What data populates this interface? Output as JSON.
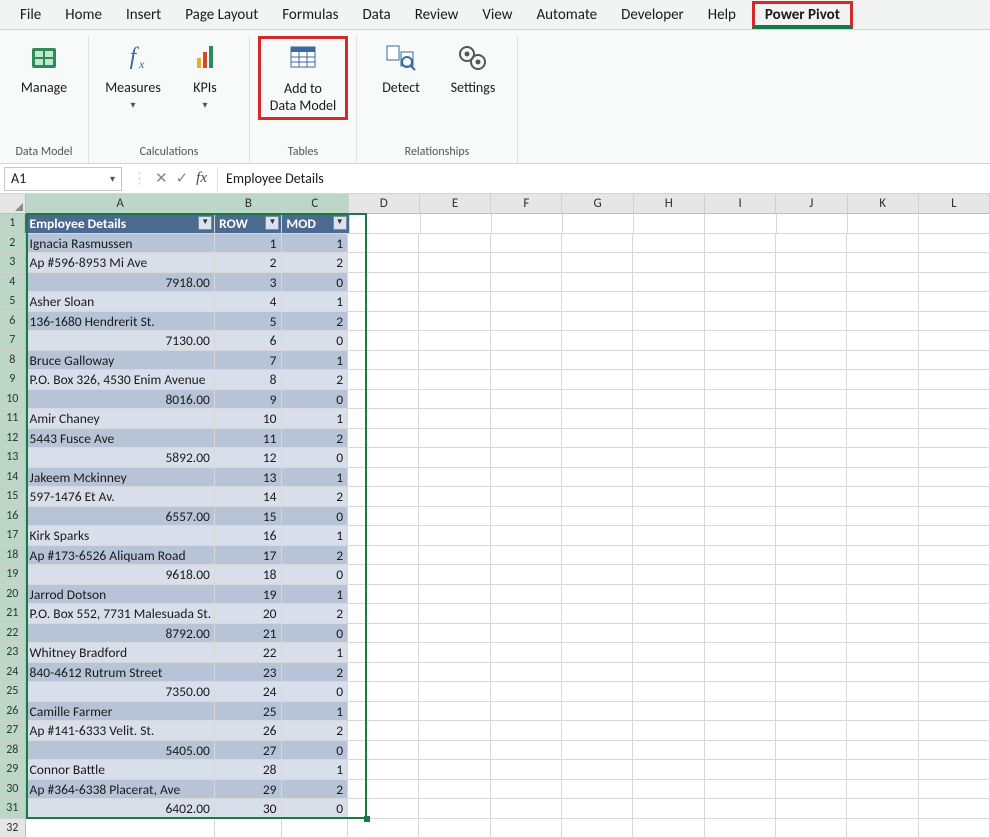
{
  "tabs": [
    "File",
    "Home",
    "Insert",
    "Page Layout",
    "Formulas",
    "Data",
    "Review",
    "View",
    "Automate",
    "Developer",
    "Help",
    "Power Pivot"
  ],
  "active_tab_index": 11,
  "ribbon": {
    "groups": [
      {
        "label": "Data Model",
        "buttons": [
          {
            "name": "manage",
            "label1": "Manage",
            "label2": "",
            "dropdown": false
          }
        ]
      },
      {
        "label": "Calculations",
        "buttons": [
          {
            "name": "measures",
            "label1": "Measures",
            "label2": "",
            "dropdown": true
          },
          {
            "name": "kpis",
            "label1": "KPIs",
            "label2": "",
            "dropdown": true
          }
        ]
      },
      {
        "label": "Tables",
        "buttons": [
          {
            "name": "add-to-data-model",
            "label1": "Add to",
            "label2": "Data Model",
            "dropdown": false,
            "highlight": true
          }
        ]
      },
      {
        "label": "Relationships",
        "buttons": [
          {
            "name": "detect",
            "label1": "Detect",
            "label2": "",
            "dropdown": false
          },
          {
            "name": "settings",
            "label1": "Settings",
            "label2": "",
            "dropdown": false
          }
        ]
      }
    ]
  },
  "namebox": "A1",
  "formula": "Employee Details",
  "columns": {
    "widths": [
      200,
      70,
      70,
      75,
      75,
      75,
      75,
      75,
      75,
      75,
      75,
      75
    ],
    "letters": [
      "A",
      "B",
      "C",
      "D",
      "E",
      "F",
      "G",
      "H",
      "I",
      "J",
      "K",
      "L"
    ],
    "selected_upto_index": 2
  },
  "table": {
    "headers": [
      "Employee Details",
      "ROW",
      "MOD"
    ],
    "rows": [
      [
        "Ignacia Rasmussen",
        "1",
        "1"
      ],
      [
        "Ap #596-8953 Mi Ave",
        "2",
        "2"
      ],
      [
        "7918.00",
        "3",
        "0"
      ],
      [
        "Asher Sloan",
        "4",
        "1"
      ],
      [
        "136-1680 Hendrerit St.",
        "5",
        "2"
      ],
      [
        "7130.00",
        "6",
        "0"
      ],
      [
        "Bruce Galloway",
        "7",
        "1"
      ],
      [
        "P.O. Box 326, 4530 Enim Avenue",
        "8",
        "2"
      ],
      [
        "8016.00",
        "9",
        "0"
      ],
      [
        "Amir Chaney",
        "10",
        "1"
      ],
      [
        "5443 Fusce Ave",
        "11",
        "2"
      ],
      [
        "5892.00",
        "12",
        "0"
      ],
      [
        "Jakeem Mckinney",
        "13",
        "1"
      ],
      [
        "597-1476 Et Av.",
        "14",
        "2"
      ],
      [
        "6557.00",
        "15",
        "0"
      ],
      [
        "Kirk Sparks",
        "16",
        "1"
      ],
      [
        "Ap #173-6526 Aliquam Road",
        "17",
        "2"
      ],
      [
        "9618.00",
        "18",
        "0"
      ],
      [
        "Jarrod Dotson",
        "19",
        "1"
      ],
      [
        "P.O. Box 552, 7731 Malesuada St.",
        "20",
        "2"
      ],
      [
        "8792.00",
        "21",
        "0"
      ],
      [
        "Whitney Bradford",
        "22",
        "1"
      ],
      [
        "840-4612 Rutrum Street",
        "23",
        "2"
      ],
      [
        "7350.00",
        "24",
        "0"
      ],
      [
        "Camille Farmer",
        "25",
        "1"
      ],
      [
        "Ap #141-6333 Velit. St.",
        "26",
        "2"
      ],
      [
        "5405.00",
        "27",
        "0"
      ],
      [
        "Connor Battle",
        "28",
        "1"
      ],
      [
        "Ap #364-6338 Placerat, Ave",
        "29",
        "2"
      ],
      [
        "6402.00",
        "30",
        "0"
      ]
    ]
  },
  "total_visible_rows": 32,
  "icons": {
    "manage": {
      "fill": "#2e8b57"
    },
    "measures": {
      "fill": "#3a6aa0"
    },
    "kpis": {
      "fill": "#d04a2a"
    },
    "add": {
      "fill": "#3a6aa0"
    },
    "detect": {
      "fill": "#3a6aa0"
    },
    "settings": {
      "fill": "#555555"
    }
  }
}
